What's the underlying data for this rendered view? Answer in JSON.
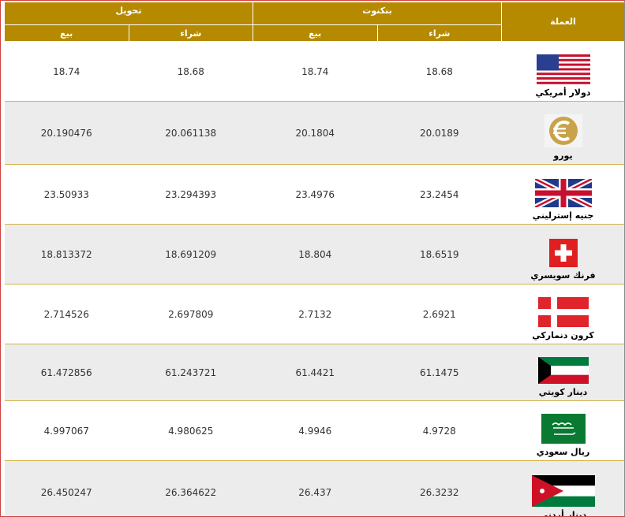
{
  "header": {
    "currency": "العملة",
    "banknotes": "بنكنوت",
    "transfer": "تحويل",
    "buy": "شراء",
    "sell": "بيع"
  },
  "rows": [
    {
      "name": "دولار أمريكي",
      "flag": "us-flag-icon",
      "bn_buy": "18.68",
      "bn_sell": "18.74",
      "tr_buy": "18.68",
      "tr_sell": "18.74"
    },
    {
      "name": "يورو",
      "flag": "euro-icon",
      "bn_buy": "20.0189",
      "bn_sell": "20.1804",
      "tr_buy": "20.061138",
      "tr_sell": "20.190476"
    },
    {
      "name": "جنيه إسترليني",
      "flag": "uk-flag-icon",
      "bn_buy": "23.2454",
      "bn_sell": "23.4976",
      "tr_buy": "23.294393",
      "tr_sell": "23.50933"
    },
    {
      "name": "فرنك سويسري",
      "flag": "swiss-flag-icon",
      "bn_buy": "18.6519",
      "bn_sell": "18.804",
      "tr_buy": "18.691209",
      "tr_sell": "18.813372"
    },
    {
      "name": "كرون دنماركي",
      "flag": "danish-flag-icon",
      "bn_buy": "2.6921",
      "bn_sell": "2.7132",
      "tr_buy": "2.697809",
      "tr_sell": "2.714526"
    },
    {
      "name": "دينار كويتي",
      "flag": "kuwait-flag-icon",
      "bn_buy": "61.1475",
      "bn_sell": "61.4421",
      "tr_buy": "61.243721",
      "tr_sell": "61.472856"
    },
    {
      "name": "ريال سعودي",
      "flag": "saudi-flag-icon",
      "bn_buy": "4.9728",
      "bn_sell": "4.9946",
      "tr_buy": "4.980625",
      "tr_sell": "4.997067"
    },
    {
      "name": "دينار أردني",
      "flag": "jordan-flag-icon",
      "bn_buy": "26.3232",
      "bn_sell": "26.437",
      "tr_buy": "26.364622",
      "tr_sell": "26.450247"
    }
  ]
}
